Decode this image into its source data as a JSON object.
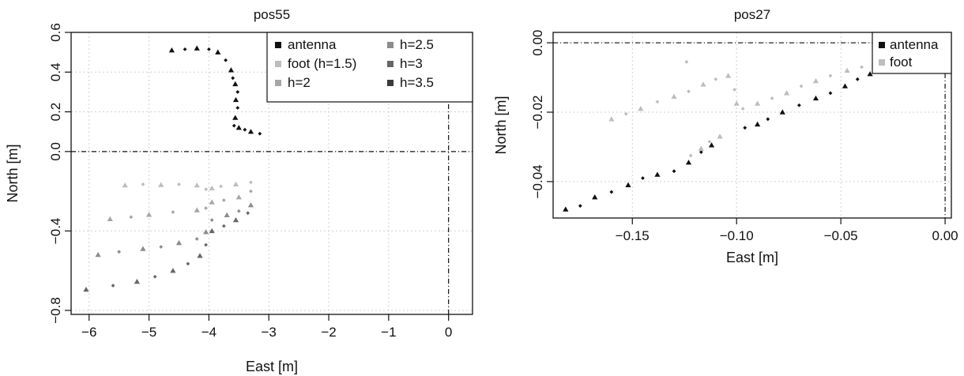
{
  "chart_data": [
    {
      "type": "scatter",
      "title": "pos55",
      "xlabel": "East [m]",
      "ylabel": "North [m]",
      "xlim": [
        -6.3,
        0.4
      ],
      "ylim": [
        -0.82,
        0.6
      ],
      "xticks": [
        "−6",
        "−5",
        "−4",
        "−3",
        "−2",
        "−1",
        "0"
      ],
      "xtick_values": [
        -6,
        -5,
        -4,
        -3,
        -2,
        -1,
        0
      ],
      "yticks": [
        "−0.8",
        "−0.4",
        "0.0",
        "0.2",
        "0.4",
        "0.6"
      ],
      "ytick_values": [
        -0.8,
        -0.4,
        0.0,
        0.2,
        0.4,
        0.6
      ],
      "grid": true,
      "reference_lines": {
        "x": 0,
        "y": 0
      },
      "legend": {
        "position": "top-right",
        "entries": [
          {
            "label": "antenna",
            "color": "#111111"
          },
          {
            "label": "foot (h=1.5)",
            "color": "#bdbdbd"
          },
          {
            "label": "h=2",
            "color": "#a6a6a6"
          },
          {
            "label": "h=2.5",
            "color": "#8c8c8c"
          },
          {
            "label": "h=3",
            "color": "#666666"
          },
          {
            "label": "h=3.5",
            "color": "#3a3a3a"
          }
        ]
      },
      "series": [
        {
          "name": "antenna",
          "color": "#111111",
          "points": [
            [
              -4.62,
              0.51
            ],
            [
              -4.4,
              0.515
            ],
            [
              -4.2,
              0.52
            ],
            [
              -4.0,
              0.515
            ],
            [
              -3.85,
              0.5
            ],
            [
              -3.72,
              0.46
            ],
            [
              -3.63,
              0.41
            ],
            [
              -3.6,
              0.37
            ],
            [
              -3.56,
              0.34
            ],
            [
              -3.52,
              0.3
            ],
            [
              -3.55,
              0.26
            ],
            [
              -3.52,
              0.22
            ],
            [
              -3.56,
              0.17
            ],
            [
              -3.58,
              0.13
            ],
            [
              -3.5,
              0.12
            ],
            [
              -3.4,
              0.11
            ],
            [
              -3.3,
              0.1
            ],
            [
              -3.15,
              0.09
            ]
          ]
        },
        {
          "name": "foot (h=1.5)",
          "color": "#bdbdbd",
          "points": [
            [
              -5.4,
              -0.17
            ],
            [
              -5.1,
              -0.165
            ],
            [
              -4.8,
              -0.168
            ],
            [
              -4.5,
              -0.165
            ],
            [
              -4.2,
              -0.17
            ],
            [
              -4.05,
              -0.19
            ],
            [
              -3.95,
              -0.185
            ],
            [
              -3.8,
              -0.175
            ],
            [
              -3.55,
              -0.165
            ],
            [
              -3.3,
              -0.155
            ]
          ]
        },
        {
          "name": "h=2",
          "color": "#a6a6a6",
          "points": [
            [
              -5.65,
              -0.34
            ],
            [
              -5.3,
              -0.33
            ],
            [
              -5.0,
              -0.318
            ],
            [
              -4.6,
              -0.305
            ],
            [
              -4.2,
              -0.295
            ],
            [
              -4.05,
              -0.285
            ],
            [
              -3.95,
              -0.255
            ],
            [
              -3.75,
              -0.245
            ],
            [
              -3.5,
              -0.23
            ],
            [
              -3.3,
              -0.2
            ]
          ]
        },
        {
          "name": "h=2.5",
          "color": "#8c8c8c",
          "points": [
            [
              -5.85,
              -0.52
            ],
            [
              -5.5,
              -0.505
            ],
            [
              -5.1,
              -0.49
            ],
            [
              -4.8,
              -0.48
            ],
            [
              -4.5,
              -0.46
            ],
            [
              -4.2,
              -0.44
            ],
            [
              -4.05,
              -0.405
            ],
            [
              -3.95,
              -0.345
            ],
            [
              -3.7,
              -0.32
            ],
            [
              -3.5,
              -0.3
            ],
            [
              -3.3,
              -0.27
            ]
          ]
        },
        {
          "name": "h=3",
          "color": "#666666",
          "points": [
            [
              -6.05,
              -0.695
            ],
            [
              -5.6,
              -0.675
            ],
            [
              -5.2,
              -0.655
            ],
            [
              -4.9,
              -0.63
            ],
            [
              -4.6,
              -0.6
            ],
            [
              -4.35,
              -0.565
            ],
            [
              -4.15,
              -0.525
            ],
            [
              -4.05,
              -0.47
            ],
            [
              -3.95,
              -0.4
            ],
            [
              -3.75,
              -0.375
            ],
            [
              -3.55,
              -0.345
            ],
            [
              -3.35,
              -0.31
            ]
          ]
        },
        {
          "name": "h=3.5",
          "color": "#3a3a3a",
          "points": []
        }
      ]
    },
    {
      "type": "scatter",
      "title": "pos27",
      "xlabel": "East [m]",
      "ylabel": "North [m]",
      "xlim": [
        -0.188,
        0.003
      ],
      "ylim": [
        -0.0505,
        0.003
      ],
      "xticks": [
        "−0.15",
        "−0.10",
        "−0.05",
        "0.00"
      ],
      "xtick_values": [
        -0.15,
        -0.1,
        -0.05,
        0.0
      ],
      "yticks": [
        "−0.04",
        "−0.02",
        "0.00"
      ],
      "ytick_values": [
        -0.04,
        -0.02,
        0.0
      ],
      "grid": true,
      "reference_lines": {
        "x": 0,
        "y": 0
      },
      "legend": {
        "position": "top-right",
        "entries": [
          {
            "label": "antenna",
            "color": "#111111"
          },
          {
            "label": "foot",
            "color": "#bdbdbd"
          }
        ]
      },
      "series": [
        {
          "name": "antenna",
          "color": "#111111",
          "points": [
            [
              -0.182,
              -0.048
            ],
            [
              -0.175,
              -0.047
            ],
            [
              -0.168,
              -0.0445
            ],
            [
              -0.16,
              -0.043
            ],
            [
              -0.152,
              -0.041
            ],
            [
              -0.145,
              -0.039
            ],
            [
              -0.138,
              -0.038
            ],
            [
              -0.13,
              -0.037
            ],
            [
              -0.123,
              -0.0345
            ],
            [
              -0.117,
              -0.0315
            ],
            [
              -0.112,
              -0.0295
            ],
            [
              -0.096,
              -0.0245
            ],
            [
              -0.09,
              -0.0235
            ],
            [
              -0.085,
              -0.022
            ],
            [
              -0.078,
              -0.02
            ],
            [
              -0.07,
              -0.018
            ],
            [
              -0.062,
              -0.016
            ],
            [
              -0.055,
              -0.0145
            ],
            [
              -0.048,
              -0.0125
            ],
            [
              -0.042,
              -0.0105
            ],
            [
              -0.036,
              -0.009
            ],
            [
              -0.03,
              -0.008
            ]
          ]
        },
        {
          "name": "foot",
          "color": "#bdbdbd",
          "points": [
            [
              -0.16,
              -0.022
            ],
            [
              -0.153,
              -0.0205
            ],
            [
              -0.146,
              -0.019
            ],
            [
              -0.138,
              -0.017
            ],
            [
              -0.13,
              -0.0155
            ],
            [
              -0.123,
              -0.014
            ],
            [
              -0.116,
              -0.012
            ],
            [
              -0.11,
              -0.0105
            ],
            [
              -0.104,
              -0.0095
            ],
            [
              -0.101,
              -0.0135
            ],
            [
              -0.1,
              -0.0175
            ],
            [
              -0.097,
              -0.019
            ],
            [
              -0.09,
              -0.0175
            ],
            [
              -0.083,
              -0.016
            ],
            [
              -0.076,
              -0.0145
            ],
            [
              -0.069,
              -0.0125
            ],
            [
              -0.062,
              -0.011
            ],
            [
              -0.055,
              -0.0095
            ],
            [
              -0.047,
              -0.008
            ],
            [
              -0.04,
              -0.007
            ],
            [
              -0.034,
              -0.0065
            ],
            [
              -0.122,
              -0.0325
            ],
            [
              -0.117,
              -0.0305
            ],
            [
              -0.113,
              -0.0285
            ],
            [
              -0.108,
              -0.027
            ],
            [
              -0.124,
              -0.0055
            ]
          ]
        }
      ]
    }
  ]
}
